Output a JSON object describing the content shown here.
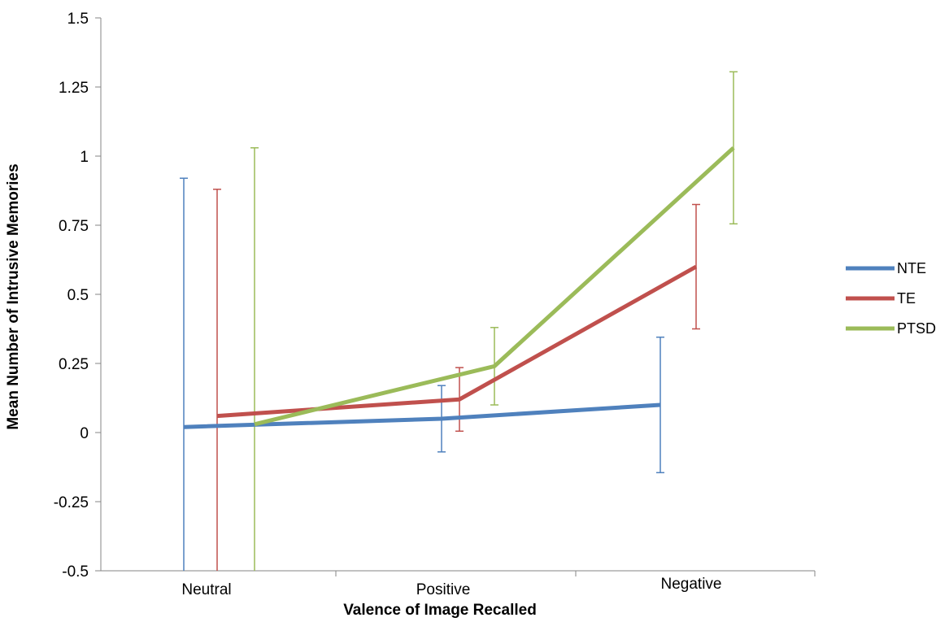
{
  "chart_data": {
    "type": "line",
    "title": "",
    "xlabel": "Valence of Image Recalled",
    "ylabel": "Mean Number of Intrusive Memories",
    "ylim": [
      -0.5,
      1.5
    ],
    "yticks": [
      1.5,
      1.25,
      1,
      0.75,
      0.5,
      0.25,
      0,
      -0.25,
      -0.5
    ],
    "ytick_labels": [
      "1.5",
      "1.25",
      "1",
      "0.75",
      "0.5",
      "0.25",
      "0",
      "-0.25",
      "-0.5"
    ],
    "categories": [
      "Neutral",
      "Positive",
      "Negative"
    ],
    "grid": false,
    "legend_position": "right",
    "series": [
      {
        "name": "NTE",
        "color": "#4f81bd",
        "values": [
          0.02,
          0.05,
          0.1
        ],
        "error_low": [
          -0.5,
          -0.07,
          -0.145
        ],
        "error_high": [
          0.92,
          0.17,
          0.345
        ]
      },
      {
        "name": "TE",
        "color": "#c0504d",
        "values": [
          0.06,
          0.12,
          0.6
        ],
        "error_low": [
          -0.5,
          0.005,
          0.375
        ],
        "error_high": [
          0.88,
          0.235,
          0.825
        ]
      },
      {
        "name": "PTSD",
        "color": "#9bbb59",
        "values": [
          0.03,
          0.24,
          1.03
        ],
        "error_low": [
          -0.5,
          0.1,
          0.755
        ],
        "error_high": [
          1.03,
          0.38,
          1.305
        ]
      }
    ]
  }
}
